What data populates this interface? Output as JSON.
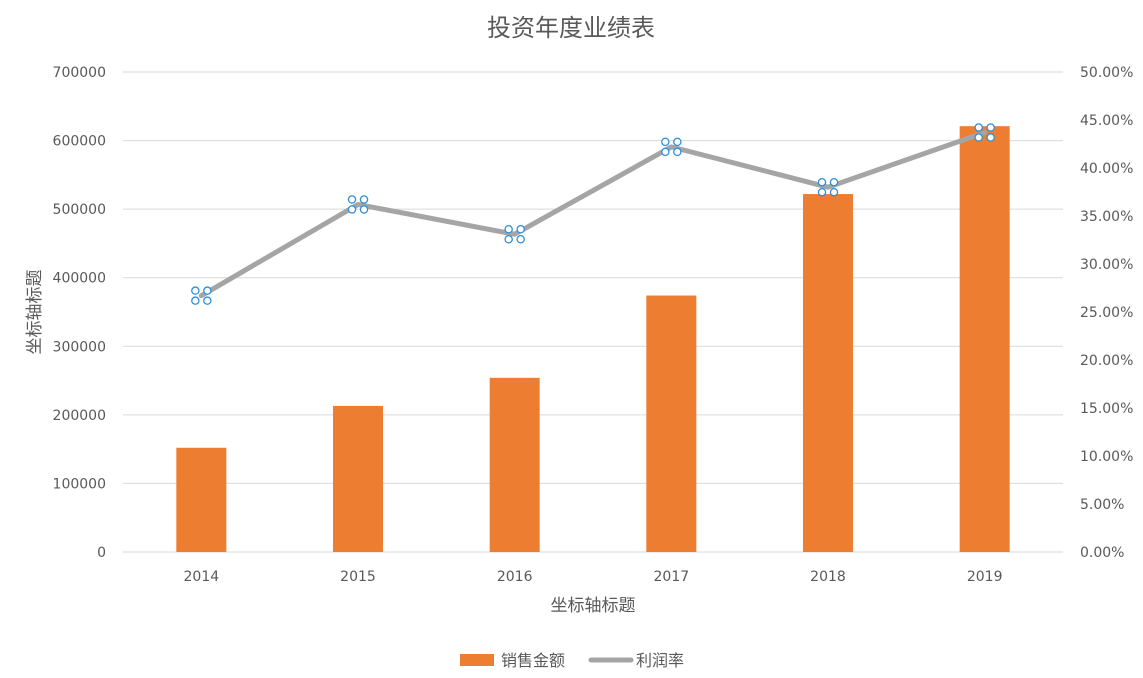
{
  "chart_data": {
    "type": "bar",
    "title": "投资年度业绩表",
    "xlabel": "坐标轴标题",
    "ylabel": "坐标轴标题",
    "categories": [
      "2014",
      "2015",
      "2016",
      "2017",
      "2018",
      "2019"
    ],
    "ylim": [
      0,
      700000
    ],
    "y_ticks": [
      "0",
      "100000",
      "200000",
      "300000",
      "400000",
      "500000",
      "600000",
      "700000"
    ],
    "y2lim": [
      0,
      0.5
    ],
    "y2_ticks": [
      "0.00%",
      "5.00%",
      "10.00%",
      "15.00%",
      "20.00%",
      "25.00%",
      "30.00%",
      "35.00%",
      "40.00%",
      "45.00%",
      "50.00%"
    ],
    "grid": true,
    "legend_position": "bottom",
    "series": [
      {
        "name": "销售金额",
        "type": "bar",
        "axis": "left",
        "color": "#ed7d31",
        "values": [
          152000,
          213000,
          254000,
          374000,
          522000,
          621000
        ]
      },
      {
        "name": "利润率",
        "type": "line",
        "axis": "right",
        "color": "#a5a5a5",
        "values": [
          0.267,
          0.362,
          0.331,
          0.422,
          0.38,
          0.437
        ]
      }
    ]
  }
}
